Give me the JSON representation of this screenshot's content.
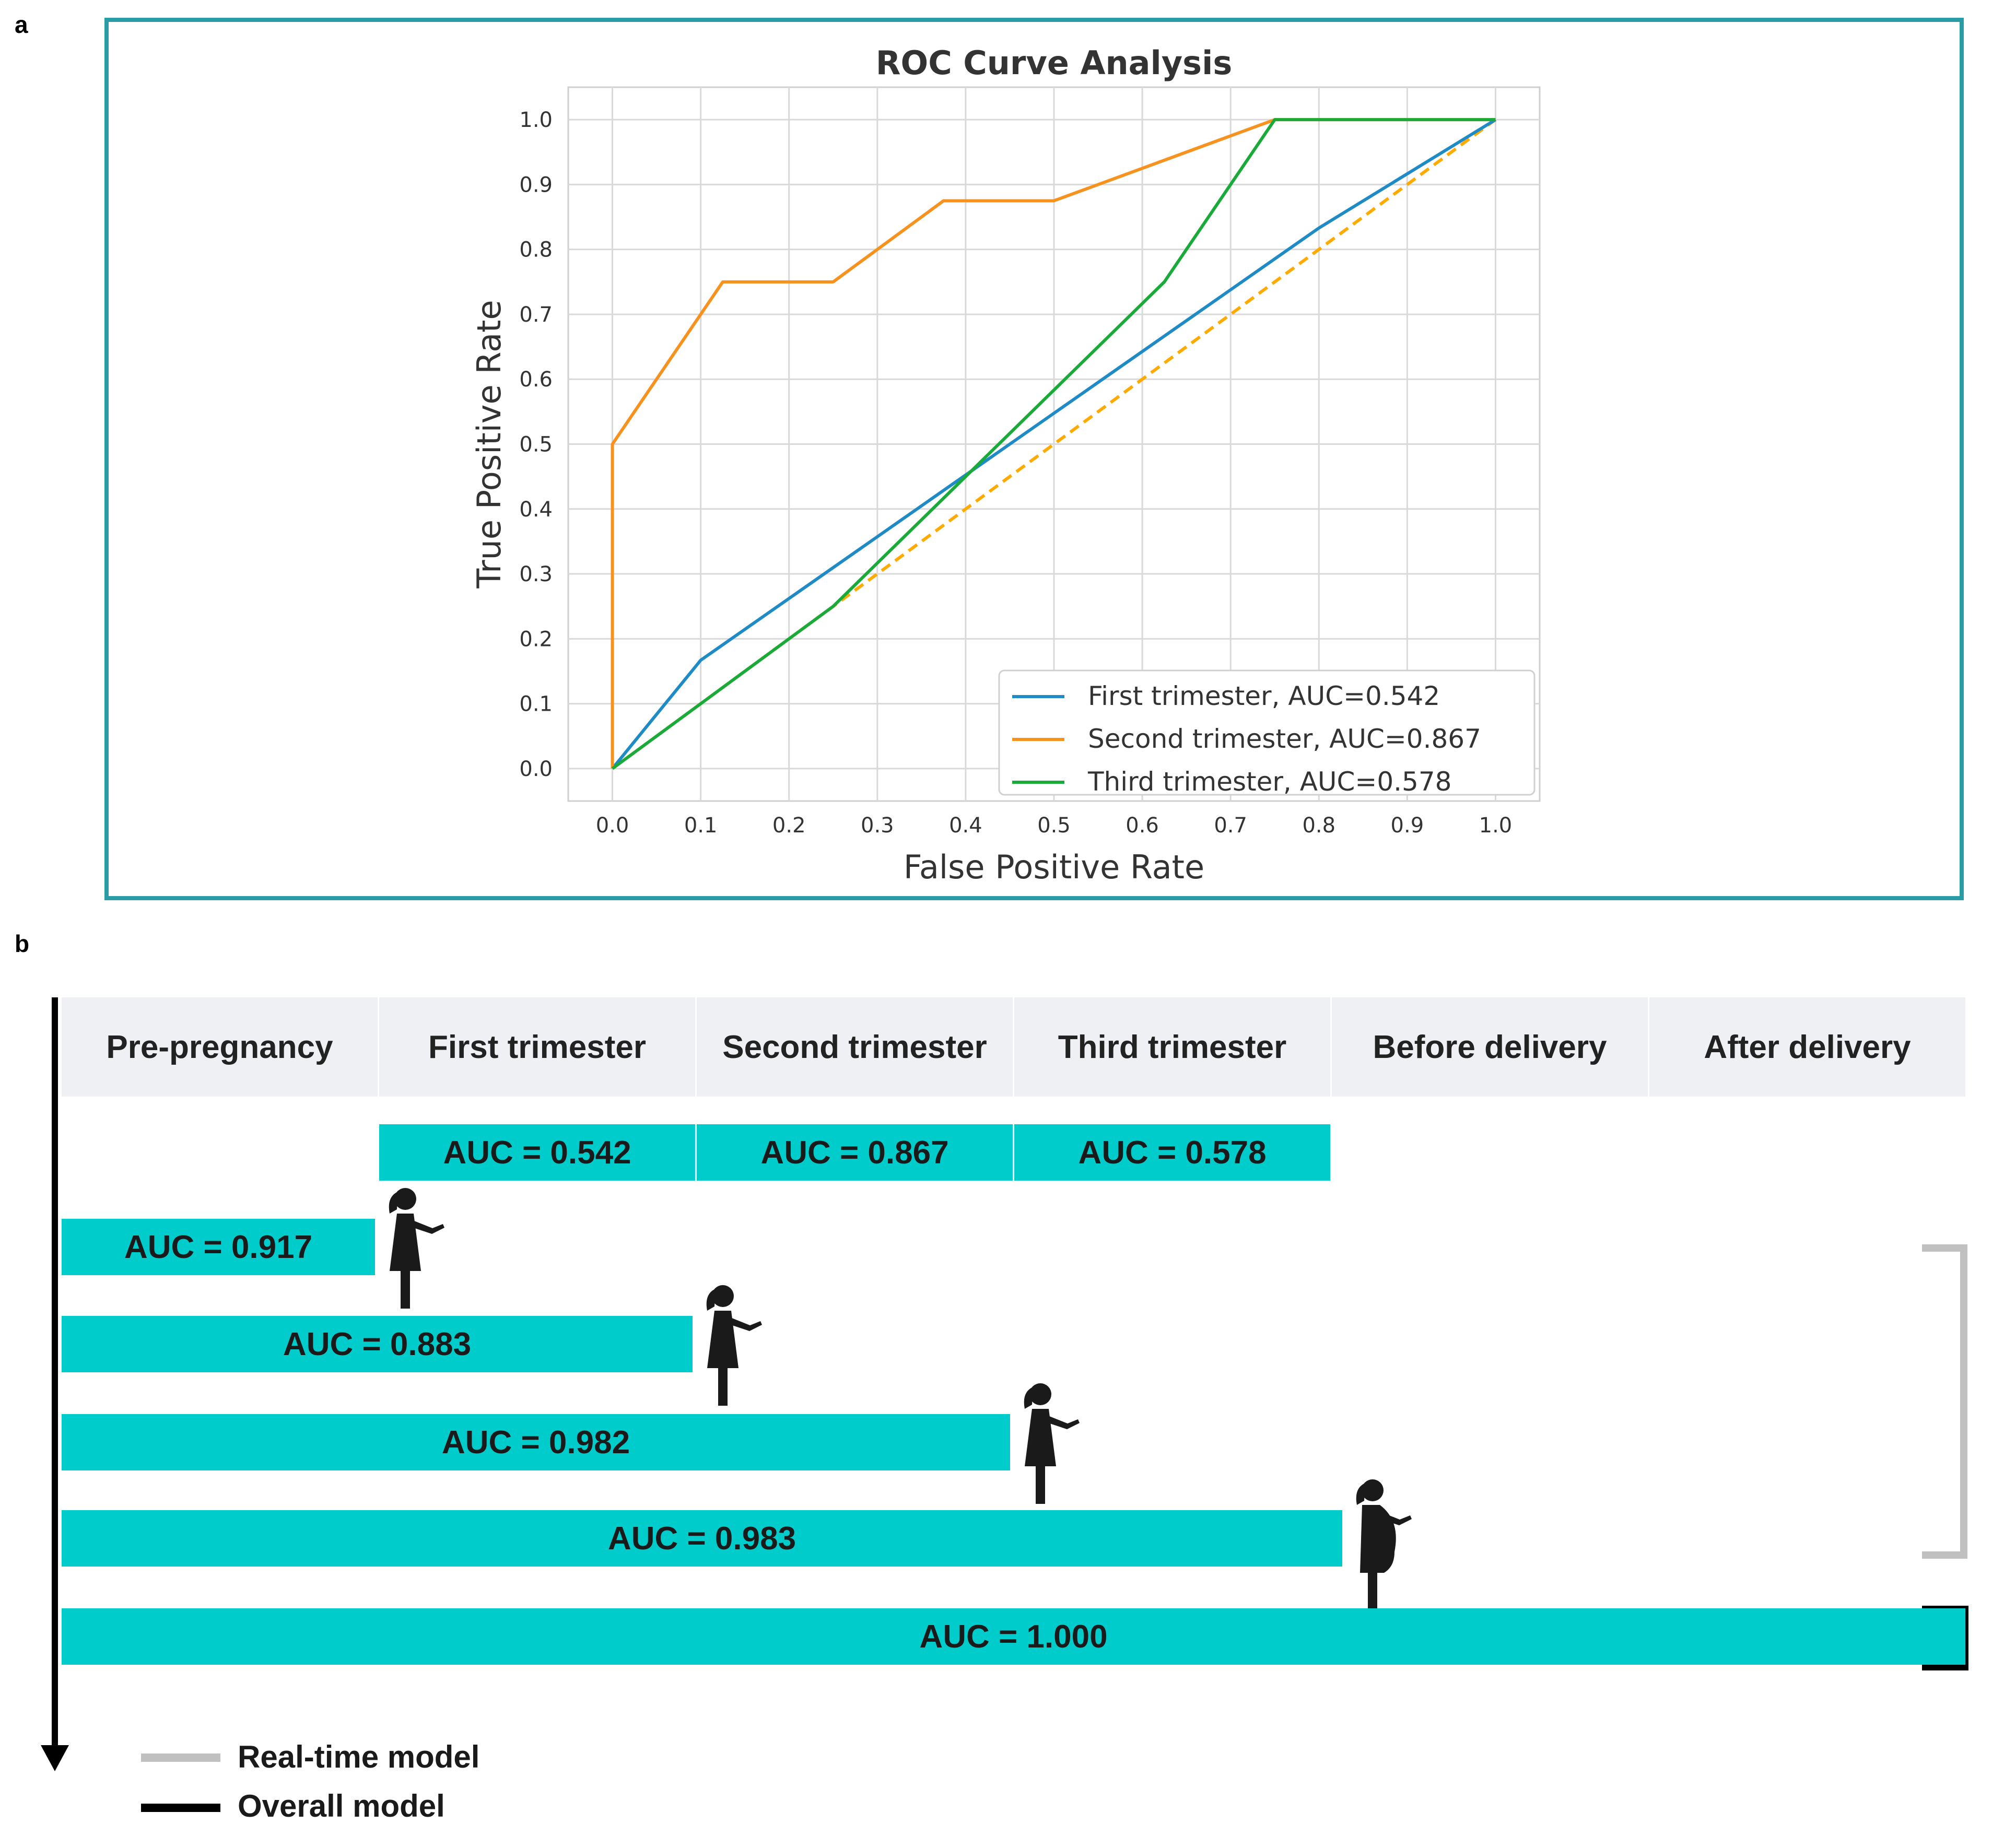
{
  "panels": {
    "a": "a",
    "b": "b"
  },
  "chart_data": {
    "type": "line",
    "title": "ROC Curve Analysis",
    "xlabel": "False Positive Rate",
    "ylabel": "True Positive Rate",
    "xlim": [
      -0.05,
      1.05
    ],
    "ylim": [
      -0.05,
      1.05
    ],
    "xticks": [
      "0.0",
      "0.1",
      "0.2",
      "0.3",
      "0.4",
      "0.5",
      "0.6",
      "0.7",
      "0.8",
      "0.9",
      "1.0"
    ],
    "yticks": [
      "0.0",
      "0.1",
      "0.2",
      "0.3",
      "0.4",
      "0.5",
      "0.6",
      "0.7",
      "0.8",
      "0.9",
      "1.0"
    ],
    "grid": true,
    "legend_position": "lower-right",
    "series": [
      {
        "name": "First trimester, AUC=0.542",
        "color": "#1f8bc6",
        "points": [
          [
            0,
            0
          ],
          [
            0.1,
            0.167
          ],
          [
            0.8,
            0.833
          ],
          [
            1.0,
            1.0
          ]
        ]
      },
      {
        "name": "Second trimester, AUC=0.867",
        "color": "#f7921e",
        "points": [
          [
            0,
            0
          ],
          [
            0,
            0.5
          ],
          [
            0.125,
            0.75
          ],
          [
            0.25,
            0.75
          ],
          [
            0.375,
            0.875
          ],
          [
            0.5,
            0.875
          ],
          [
            0.75,
            1.0
          ],
          [
            1.0,
            1.0
          ]
        ]
      },
      {
        "name": "Third trimester, AUC=0.578",
        "color": "#1aaa3a",
        "points": [
          [
            0,
            0
          ],
          [
            0.25,
            0.25
          ],
          [
            0.625,
            0.75
          ],
          [
            0.75,
            1.0
          ],
          [
            1.0,
            1.0
          ]
        ]
      },
      {
        "name": "",
        "color": "#ffaa00",
        "dashed": true,
        "points": [
          [
            0,
            0
          ],
          [
            1.0,
            1.0
          ]
        ]
      }
    ]
  },
  "timeline": {
    "stages": [
      "Pre-pregnancy",
      "First trimester",
      "Second trimester",
      "Third trimester",
      "Before delivery",
      "After delivery"
    ],
    "trimester_aucs": [
      {
        "stage_index": 1,
        "label": "AUC = 0.542",
        "value": 0.542
      },
      {
        "stage_index": 2,
        "label": "AUC = 0.867",
        "value": 0.867
      },
      {
        "stage_index": 3,
        "label": "AUC = 0.578",
        "value": 0.578
      }
    ],
    "cumulative_models": [
      {
        "label": "AUC = 0.917",
        "value": 0.917,
        "end_stage": 1,
        "model": "Real-time model"
      },
      {
        "label": "AUC = 0.883",
        "value": 0.883,
        "end_stage": 2,
        "model": "Real-time model"
      },
      {
        "label": "AUC = 0.982",
        "value": 0.982,
        "end_stage": 3,
        "model": "Real-time model"
      },
      {
        "label": "AUC = 0.983",
        "value": 0.983,
        "end_stage": 4,
        "model": "Real-time model"
      },
      {
        "label": "AUC = 1.000",
        "value": 1.0,
        "end_stage": 6,
        "model": "Overall model"
      }
    ],
    "bar_color": "#00cccc",
    "legend": [
      {
        "label": "Real-time model",
        "color": "#c0c0c0"
      },
      {
        "label": "Overall model",
        "color": "#000000"
      }
    ]
  }
}
